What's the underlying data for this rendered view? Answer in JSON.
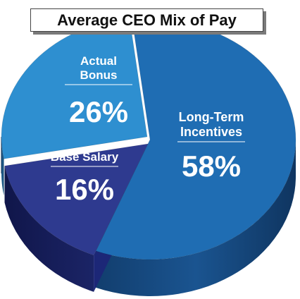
{
  "chart_data": {
    "type": "pie",
    "title": "Average CEO Mix of Pay",
    "slices": [
      {
        "label_lines": [
          "Long-Term",
          "Incentives"
        ],
        "value": 58,
        "value_label": "58%",
        "color": "#1f6db3"
      },
      {
        "label_lines": [
          "Base Salary"
        ],
        "value": 16,
        "value_label": "16%",
        "color": "#2e3a8f"
      },
      {
        "label_lines": [
          "Actual",
          "Bonus"
        ],
        "value": 26,
        "value_label": "26%",
        "color": "#2e8fd0"
      }
    ],
    "style": "3d-exploded-pie"
  }
}
